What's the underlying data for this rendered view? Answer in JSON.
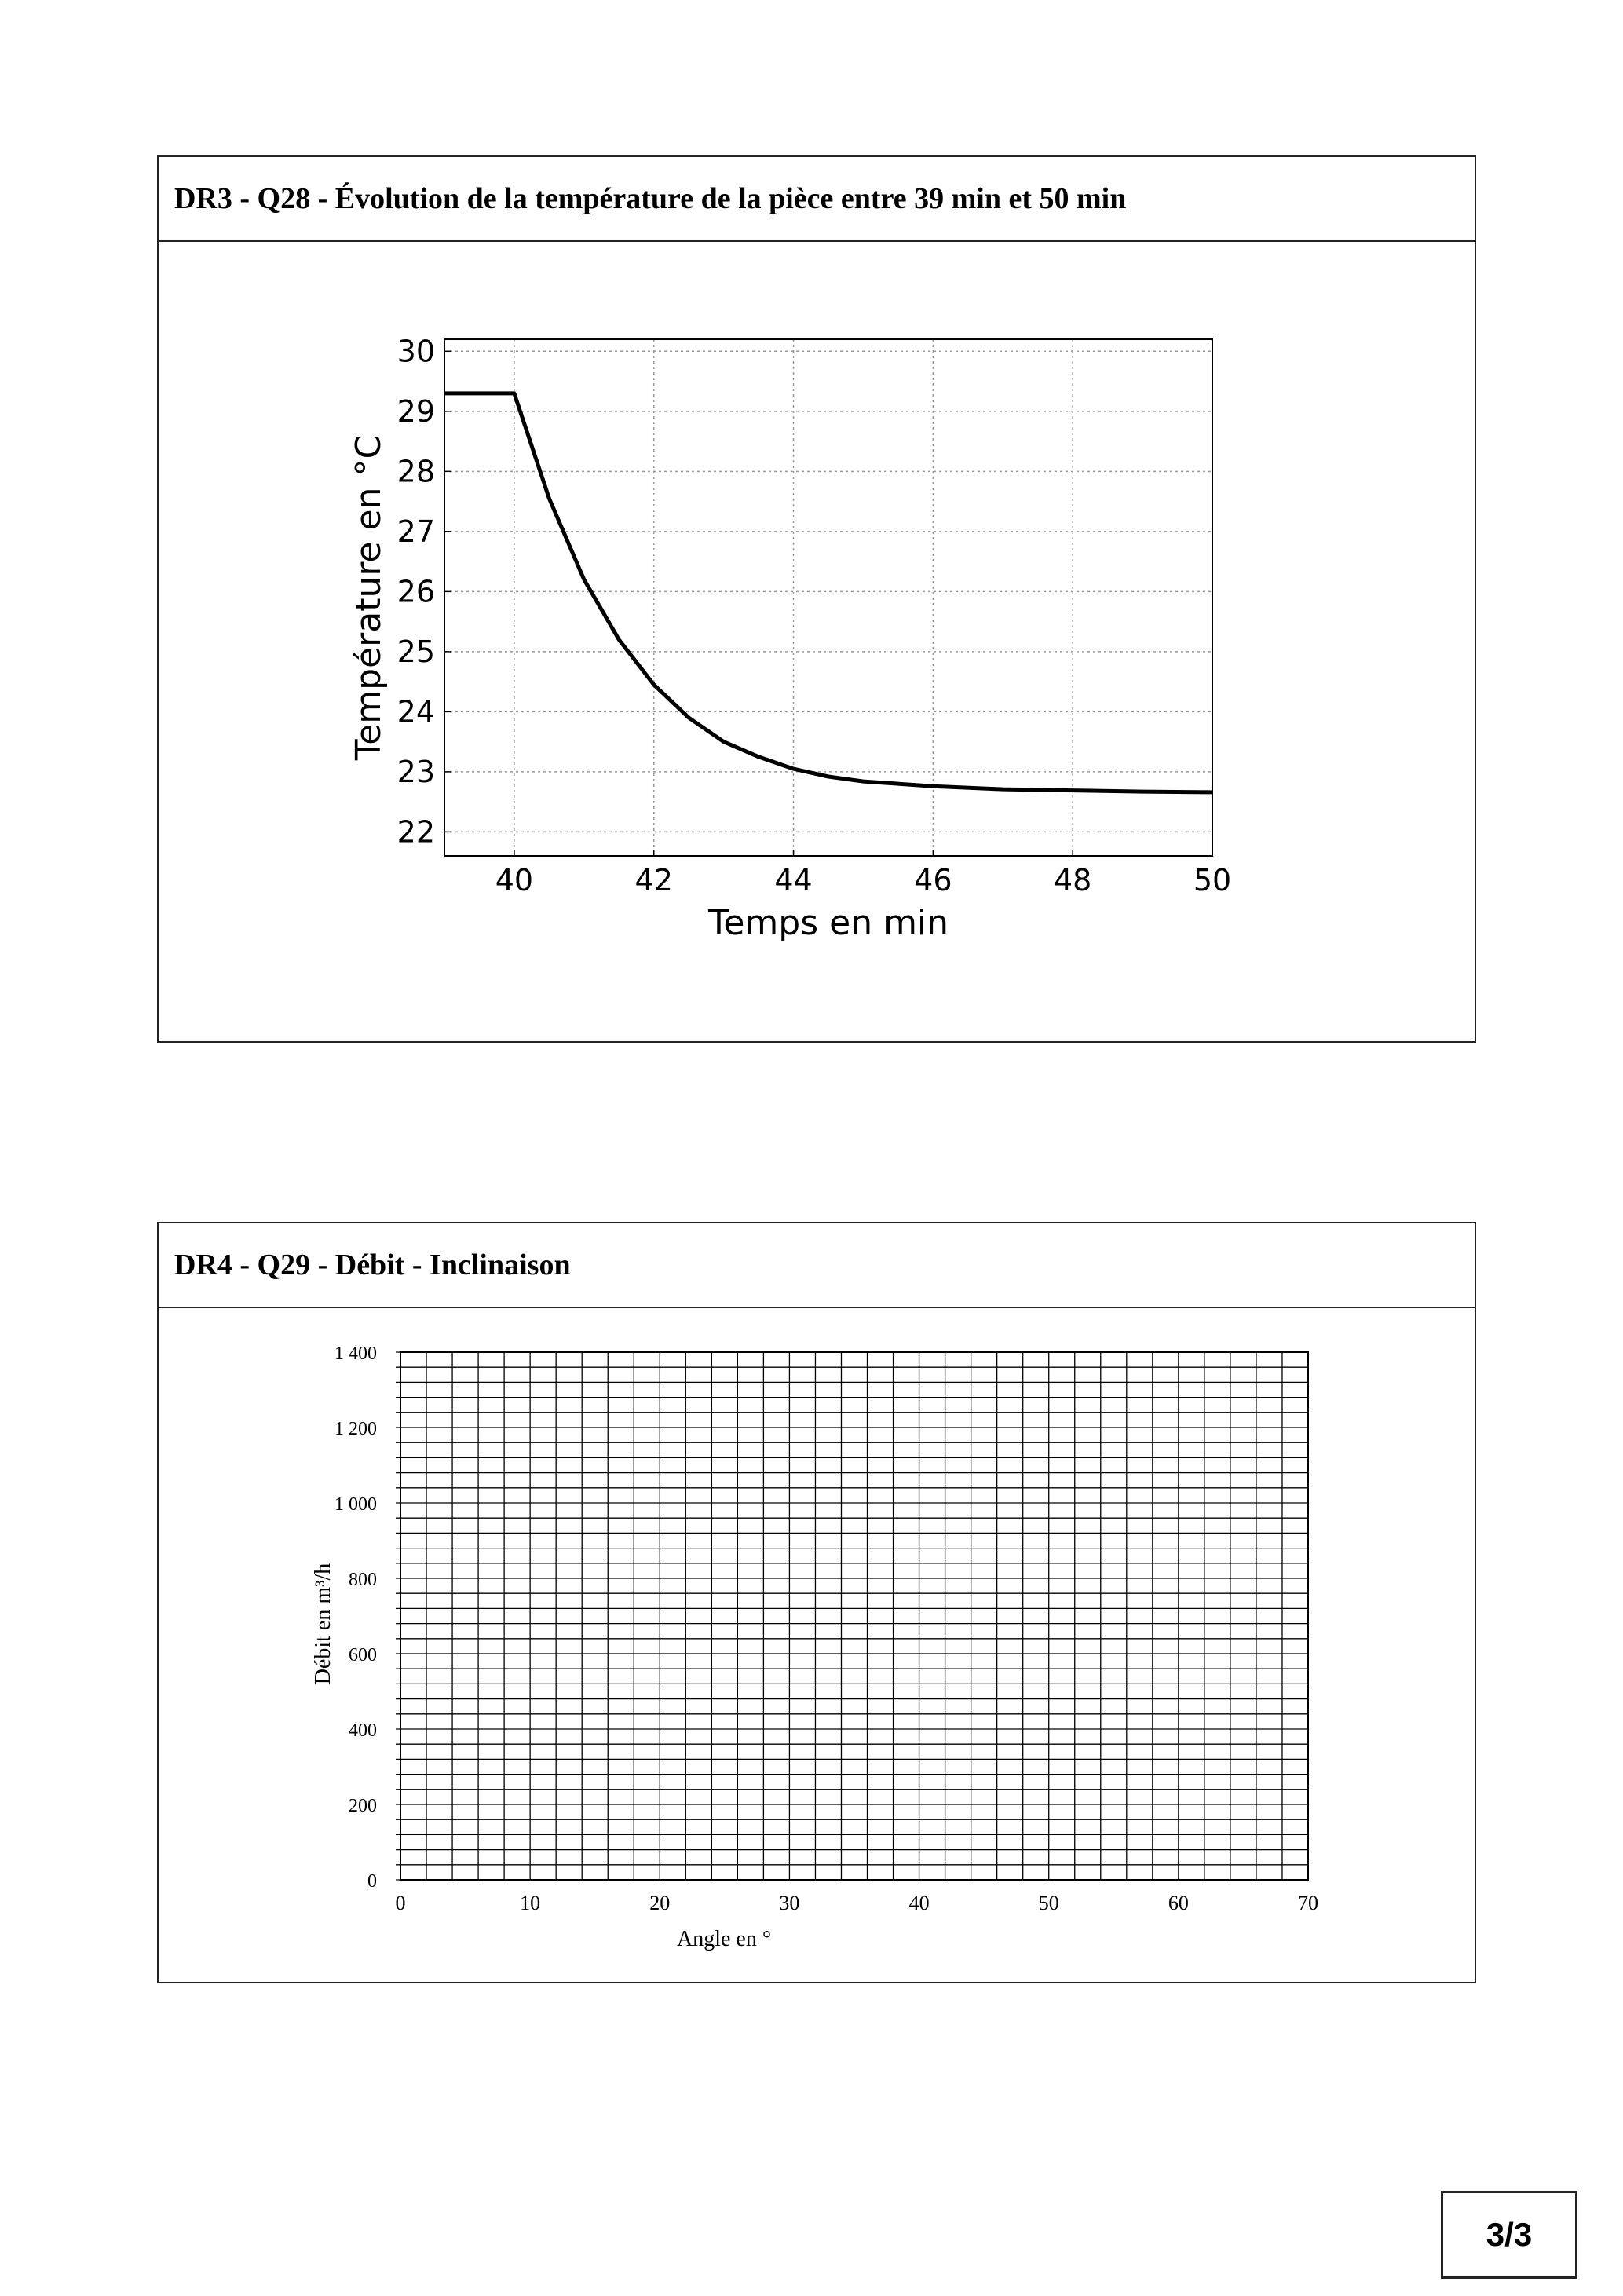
{
  "panels": [
    {
      "title": "DR3 - Q28 - Évolution de la température de la pièce entre 39 min et 50 min"
    },
    {
      "title": "DR4 - Q29 - Débit - Inclinaison"
    }
  ],
  "page_number": "3/3",
  "chart_data": [
    {
      "type": "line",
      "title": "",
      "xlabel": "Temps en min",
      "ylabel": "Température en °C",
      "xlim": [
        39,
        50
      ],
      "ylim": [
        21.6,
        30.2
      ],
      "xticks": [
        40,
        42,
        44,
        46,
        48,
        50
      ],
      "yticks": [
        22,
        23,
        24,
        25,
        26,
        27,
        28,
        29,
        30
      ],
      "grid": true,
      "series": [
        {
          "color": "#000000",
          "x": [
            39,
            40,
            40.5,
            41,
            41.5,
            42,
            42.5,
            43,
            43.5,
            44,
            44.5,
            45,
            46,
            47,
            48,
            49,
            50
          ],
          "y": [
            29.3,
            29.3,
            27.55,
            26.2,
            25.2,
            24.45,
            23.9,
            23.5,
            23.25,
            23.05,
            22.92,
            22.84,
            22.76,
            22.71,
            22.69,
            22.67,
            22.66
          ]
        }
      ]
    },
    {
      "type": "line",
      "title": "",
      "xlabel": "Angle en °",
      "ylabel": "Débit en m³/h",
      "xlim": [
        0,
        70
      ],
      "ylim": [
        0,
        1400
      ],
      "xticks": [
        0,
        10,
        20,
        30,
        40,
        50,
        60,
        70
      ],
      "yticks": [
        0,
        200,
        400,
        600,
        800,
        1000,
        1200,
        1400
      ],
      "ytick_labels": [
        "0",
        "200",
        "400",
        "600",
        "800",
        "1 000",
        "1 200",
        "1 400"
      ],
      "x_minor_step": 2,
      "y_minor_step": 40,
      "grid": true,
      "series": []
    }
  ]
}
